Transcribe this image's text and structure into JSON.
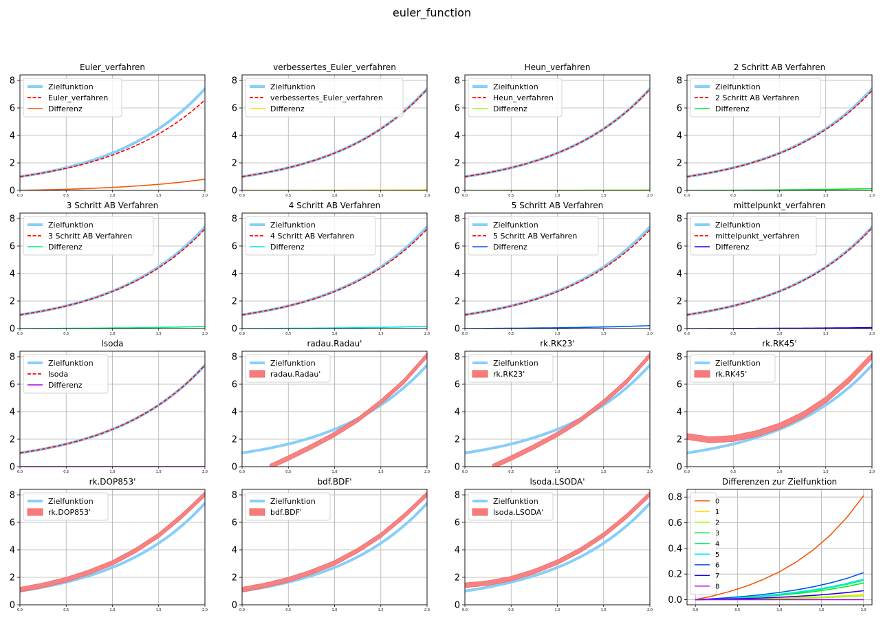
{
  "figure": {
    "title": "euler_function"
  },
  "colors": {
    "target": "#87cefa",
    "method": "#ff0000",
    "band": "#f77b7b",
    "grid": "#b0b0b0",
    "diff_palette": [
      "#f05a0a",
      "#ffe000",
      "#8cff00",
      "#00ee22",
      "#00f27c",
      "#00e6ee",
      "#0058f2",
      "#2200e6",
      "#b000e6"
    ]
  },
  "chart_data": [
    {
      "type": "line",
      "title": "Euler_verfahren",
      "xlim": [
        0,
        2
      ],
      "ylim": [
        0,
        8.4
      ],
      "xticks": [
        "0.0",
        "0.5",
        "1.0",
        "1.5",
        "2.0"
      ],
      "yticks": [
        "0",
        "2",
        "4",
        "6",
        "8"
      ],
      "grid": true,
      "legend_placement": "top-left",
      "legend": [
        "Zielfunktion",
        "Euler_verfahren",
        "Differenz"
      ],
      "series": [
        {
          "kind": "target"
        },
        {
          "kind": "approx",
          "final_value": 6.58
        },
        {
          "kind": "diff",
          "final_value": 0.81,
          "color_index": 0
        }
      ]
    },
    {
      "type": "line",
      "title": "verbessertes_Euler_verfahren",
      "xlim": [
        0,
        2
      ],
      "ylim": [
        0,
        8.4
      ],
      "xticks": [
        "0.0",
        "0.5",
        "1.0",
        "1.5",
        "2.0"
      ],
      "yticks": [
        "0",
        "2",
        "4",
        "6",
        "8"
      ],
      "grid": true,
      "legend_placement": "top-left",
      "legend": [
        "Zielfunktion",
        "verbessertes_Euler_verfahren",
        "Differenz"
      ],
      "series": [
        {
          "kind": "target"
        },
        {
          "kind": "approx",
          "final_value": 7.35
        },
        {
          "kind": "diff",
          "final_value": 0.04,
          "color_index": 1
        }
      ]
    },
    {
      "type": "line",
      "title": "Heun_verfahren",
      "xlim": [
        0,
        2
      ],
      "ylim": [
        0,
        8.4
      ],
      "xticks": [
        "0.0",
        "0.5",
        "1.0",
        "1.5",
        "2.0"
      ],
      "yticks": [
        "0",
        "2",
        "4",
        "6",
        "8"
      ],
      "grid": true,
      "legend_placement": "top-left",
      "legend": [
        "Zielfunktion",
        "Heun_verfahren",
        "Differenz"
      ],
      "series": [
        {
          "kind": "target"
        },
        {
          "kind": "approx",
          "final_value": 7.36
        },
        {
          "kind": "diff",
          "final_value": 0.03,
          "color_index": 2
        }
      ]
    },
    {
      "type": "line",
      "title": "2 Schritt AB Verfahren",
      "xlim": [
        0,
        2
      ],
      "ylim": [
        0,
        8.4
      ],
      "xticks": [
        "0.0",
        "0.5",
        "1.0",
        "1.5",
        "2.0"
      ],
      "yticks": [
        "0",
        "2",
        "4",
        "6",
        "8"
      ],
      "grid": true,
      "legend_placement": "top-left",
      "legend": [
        "Zielfunktion",
        "2 Schritt AB Verfahren",
        "Differenz"
      ],
      "series": [
        {
          "kind": "target"
        },
        {
          "kind": "approx",
          "final_value": 7.26
        },
        {
          "kind": "diff",
          "final_value": 0.13,
          "color_index": 3
        }
      ]
    },
    {
      "type": "line",
      "title": "3 Schritt AB Verfahren",
      "xlim": [
        0,
        2
      ],
      "ylim": [
        0,
        8.4
      ],
      "xticks": [
        "0.0",
        "0.5",
        "1.0",
        "1.5",
        "2.0"
      ],
      "yticks": [
        "0",
        "2",
        "4",
        "6",
        "8"
      ],
      "grid": true,
      "legend_placement": "top-left",
      "legend": [
        "Zielfunktion",
        "3 Schritt AB Verfahren",
        "Differenz"
      ],
      "series": [
        {
          "kind": "target"
        },
        {
          "kind": "approx",
          "final_value": 7.24
        },
        {
          "kind": "diff",
          "final_value": 0.15,
          "color_index": 4
        }
      ]
    },
    {
      "type": "line",
      "title": "4 Schritt AB Verfahren",
      "xlim": [
        0,
        2
      ],
      "ylim": [
        0,
        8.4
      ],
      "xticks": [
        "0.0",
        "0.5",
        "1.0",
        "1.5",
        "2.0"
      ],
      "yticks": [
        "0",
        "2",
        "4",
        "6",
        "8"
      ],
      "grid": true,
      "legend_placement": "top-left",
      "legend": [
        "Zielfunktion",
        "4 Schritt AB Verfahren",
        "Differenz"
      ],
      "series": [
        {
          "kind": "target"
        },
        {
          "kind": "approx",
          "final_value": 7.23
        },
        {
          "kind": "diff",
          "final_value": 0.16,
          "color_index": 5
        }
      ]
    },
    {
      "type": "line",
      "title": "5 Schritt AB Verfahren",
      "xlim": [
        0,
        2
      ],
      "ylim": [
        0,
        8.4
      ],
      "xticks": [
        "0.0",
        "0.5",
        "1.0",
        "1.5",
        "2.0"
      ],
      "yticks": [
        "0",
        "2",
        "4",
        "6",
        "8"
      ],
      "grid": true,
      "legend_placement": "top-left",
      "legend": [
        "Zielfunktion",
        "5 Schritt AB Verfahren",
        "Differenz"
      ],
      "series": [
        {
          "kind": "target"
        },
        {
          "kind": "approx",
          "final_value": 7.18
        },
        {
          "kind": "diff",
          "final_value": 0.21,
          "color_index": 6
        }
      ]
    },
    {
      "type": "line",
      "title": "mittelpunkt_verfahren",
      "xlim": [
        0,
        2
      ],
      "ylim": [
        0,
        8.4
      ],
      "xticks": [
        "0.0",
        "0.5",
        "1.0",
        "1.5",
        "2.0"
      ],
      "yticks": [
        "0",
        "2",
        "4",
        "6",
        "8"
      ],
      "grid": true,
      "legend_placement": "top-left",
      "legend": [
        "Zielfunktion",
        "mittelpunkt_verfahren",
        "Differenz"
      ],
      "series": [
        {
          "kind": "target"
        },
        {
          "kind": "approx",
          "final_value": 7.32
        },
        {
          "kind": "diff",
          "final_value": 0.07,
          "color_index": 7
        }
      ]
    },
    {
      "type": "line",
      "title": "lsoda",
      "xlim": [
        0,
        2
      ],
      "ylim": [
        0,
        8.4
      ],
      "xticks": [
        "0.0",
        "0.5",
        "1.0",
        "1.5",
        "2.0"
      ],
      "yticks": [
        "0",
        "2",
        "4",
        "6",
        "8"
      ],
      "grid": true,
      "legend_placement": "top-left",
      "legend": [
        "Zielfunktion",
        "lsoda",
        "Differenz"
      ],
      "series": [
        {
          "kind": "target"
        },
        {
          "kind": "approx",
          "final_value": 7.39
        },
        {
          "kind": "diff",
          "final_value": 0.0,
          "color_index": 8
        }
      ]
    },
    {
      "type": "area",
      "title": "radau.Radau'",
      "xlim": [
        0,
        2
      ],
      "ylim": [
        0,
        8.4
      ],
      "xticks": [
        "0.0",
        "0.5",
        "1.0",
        "1.5",
        "2.0"
      ],
      "yticks": [
        "0",
        "2",
        "4",
        "6",
        "8"
      ],
      "grid": true,
      "legend_placement": "top-left",
      "legend": [
        "Zielfunktion",
        "radau.Radau'"
      ],
      "series": [
        {
          "kind": "target"
        },
        {
          "kind": "band",
          "x": [
            0.3,
            0.5,
            0.75,
            1.0,
            1.25,
            1.5,
            1.75,
            2.0
          ],
          "y": [
            0.0,
            0.62,
            1.45,
            2.35,
            3.4,
            4.7,
            6.2,
            8.1
          ],
          "width": 0.35
        }
      ]
    },
    {
      "type": "area",
      "title": "rk.RK23'",
      "xlim": [
        0,
        2
      ],
      "ylim": [
        0,
        8.4
      ],
      "xticks": [
        "0.0",
        "0.5",
        "1.0",
        "1.5",
        "2.0"
      ],
      "yticks": [
        "0",
        "2",
        "4",
        "6",
        "8"
      ],
      "grid": true,
      "legend_placement": "top-left",
      "legend": [
        "Zielfunktion",
        "rk.RK23'"
      ],
      "series": [
        {
          "kind": "target"
        },
        {
          "kind": "band",
          "x": [
            0.3,
            0.5,
            0.75,
            1.0,
            1.25,
            1.5,
            1.75,
            2.0
          ],
          "y": [
            0.0,
            0.62,
            1.45,
            2.35,
            3.4,
            4.7,
            6.2,
            8.1
          ],
          "width": 0.35
        }
      ]
    },
    {
      "type": "area",
      "title": "rk.RK45'",
      "xlim": [
        0,
        2
      ],
      "ylim": [
        0,
        8.4
      ],
      "xticks": [
        "0.0",
        "0.5",
        "1.0",
        "1.5",
        "2.0"
      ],
      "yticks": [
        "0",
        "2",
        "4",
        "6",
        "8"
      ],
      "grid": true,
      "legend_placement": "top-left",
      "legend": [
        "Zielfunktion",
        "rk.RK45'"
      ],
      "series": [
        {
          "kind": "target"
        },
        {
          "kind": "band",
          "x": [
            0.0,
            0.25,
            0.5,
            0.75,
            1.0,
            1.25,
            1.5,
            1.75,
            2.0
          ],
          "y": [
            2.2,
            1.95,
            2.05,
            2.4,
            2.95,
            3.75,
            4.85,
            6.3,
            8.05
          ],
          "width": 0.45
        }
      ]
    },
    {
      "type": "area",
      "title": "rk.DOP853'",
      "xlim": [
        0,
        2
      ],
      "ylim": [
        0,
        8.4
      ],
      "xticks": [
        "0.0",
        "0.5",
        "1.0",
        "1.5",
        "2.0"
      ],
      "yticks": [
        "0",
        "2",
        "4",
        "6",
        "8"
      ],
      "grid": true,
      "legend_placement": "top-left",
      "legend": [
        "Zielfunktion",
        "rk.DOP853'"
      ],
      "series": [
        {
          "kind": "target"
        },
        {
          "kind": "band",
          "x": [
            0.0,
            0.25,
            0.5,
            0.75,
            1.0,
            1.25,
            1.5,
            1.75,
            2.0
          ],
          "y": [
            1.1,
            1.42,
            1.83,
            2.38,
            3.05,
            3.95,
            5.05,
            6.45,
            8.05
          ],
          "width": 0.35
        }
      ]
    },
    {
      "type": "area",
      "title": "bdf.BDF'",
      "xlim": [
        0,
        2
      ],
      "ylim": [
        0,
        8.4
      ],
      "xticks": [
        "0.0",
        "0.5",
        "1.0",
        "1.5",
        "2.0"
      ],
      "yticks": [
        "0",
        "2",
        "4",
        "6",
        "8"
      ],
      "grid": true,
      "legend_placement": "top-left",
      "legend": [
        "Zielfunktion",
        "bdf.BDF'"
      ],
      "series": [
        {
          "kind": "target"
        },
        {
          "kind": "band",
          "x": [
            0.0,
            0.25,
            0.5,
            0.75,
            1.0,
            1.25,
            1.5,
            1.75,
            2.0
          ],
          "y": [
            1.1,
            1.42,
            1.83,
            2.38,
            3.05,
            3.95,
            5.05,
            6.45,
            8.05
          ],
          "width": 0.35
        }
      ]
    },
    {
      "type": "area",
      "title": "lsoda.LSODA'",
      "xlim": [
        0,
        2
      ],
      "ylim": [
        0,
        8.4
      ],
      "xticks": [
        "0.0",
        "0.5",
        "1.0",
        "1.5",
        "2.0"
      ],
      "yticks": [
        "0",
        "2",
        "4",
        "6",
        "8"
      ],
      "grid": true,
      "legend_placement": "top-left",
      "legend": [
        "Zielfunktion",
        "lsoda.LSODA'"
      ],
      "series": [
        {
          "kind": "target"
        },
        {
          "kind": "band",
          "x": [
            0.0,
            0.25,
            0.5,
            0.75,
            1.0,
            1.25,
            1.5,
            1.75,
            2.0
          ],
          "y": [
            1.42,
            1.58,
            1.9,
            2.42,
            3.1,
            3.98,
            5.08,
            6.45,
            8.05
          ],
          "width": 0.35
        }
      ]
    },
    {
      "type": "line",
      "title": "Differenzen zur Zielfunktion",
      "xlim": [
        -0.1,
        2.1
      ],
      "ylim": [
        -0.04,
        0.86
      ],
      "xticks": [
        "0.0",
        "0.5",
        "1.0",
        "1.5",
        "2.0"
      ],
      "yticks": [
        "0.0",
        "0.2",
        "0.4",
        "0.6",
        "0.8"
      ],
      "grid": true,
      "legend_placement": "upper-left",
      "legend": [
        "0",
        "1",
        "2",
        "3",
        "4",
        "5",
        "6",
        "7",
        "8"
      ],
      "series": [
        {
          "kind": "diff",
          "name": "0",
          "final_value": 0.81,
          "color_index": 0
        },
        {
          "kind": "diff",
          "name": "1",
          "final_value": 0.04,
          "color_index": 1
        },
        {
          "kind": "diff",
          "name": "2",
          "final_value": 0.03,
          "color_index": 2
        },
        {
          "kind": "diff",
          "name": "3",
          "final_value": 0.13,
          "color_index": 3
        },
        {
          "kind": "diff",
          "name": "4",
          "final_value": 0.15,
          "color_index": 4
        },
        {
          "kind": "diff",
          "name": "5",
          "final_value": 0.16,
          "color_index": 5
        },
        {
          "kind": "diff",
          "name": "6",
          "final_value": 0.21,
          "color_index": 6
        },
        {
          "kind": "diff",
          "name": "7",
          "final_value": 0.07,
          "color_index": 7
        },
        {
          "kind": "diff",
          "name": "8",
          "final_value": 0.0,
          "color_index": 8
        }
      ]
    }
  ]
}
